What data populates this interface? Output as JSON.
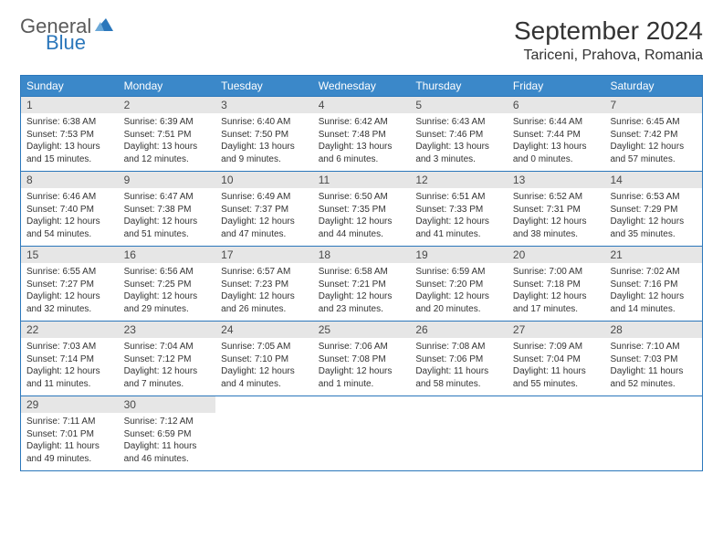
{
  "brand": {
    "general": "General",
    "blue": "Blue",
    "icon_color": "#2b77bb"
  },
  "title": "September 2024",
  "location": "Tariceni, Prahova, Romania",
  "colors": {
    "header_bg": "#3b88c9",
    "border": "#2b77bb",
    "daynum_bg": "#e6e6e6",
    "text": "#333333",
    "dow_text": "#ffffff"
  },
  "dow": [
    "Sunday",
    "Monday",
    "Tuesday",
    "Wednesday",
    "Thursday",
    "Friday",
    "Saturday"
  ],
  "weeks": [
    [
      {
        "n": "1",
        "sr": "Sunrise: 6:38 AM",
        "ss": "Sunset: 7:53 PM",
        "d1": "Daylight: 13 hours",
        "d2": "and 15 minutes."
      },
      {
        "n": "2",
        "sr": "Sunrise: 6:39 AM",
        "ss": "Sunset: 7:51 PM",
        "d1": "Daylight: 13 hours",
        "d2": "and 12 minutes."
      },
      {
        "n": "3",
        "sr": "Sunrise: 6:40 AM",
        "ss": "Sunset: 7:50 PM",
        "d1": "Daylight: 13 hours",
        "d2": "and 9 minutes."
      },
      {
        "n": "4",
        "sr": "Sunrise: 6:42 AM",
        "ss": "Sunset: 7:48 PM",
        "d1": "Daylight: 13 hours",
        "d2": "and 6 minutes."
      },
      {
        "n": "5",
        "sr": "Sunrise: 6:43 AM",
        "ss": "Sunset: 7:46 PM",
        "d1": "Daylight: 13 hours",
        "d2": "and 3 minutes."
      },
      {
        "n": "6",
        "sr": "Sunrise: 6:44 AM",
        "ss": "Sunset: 7:44 PM",
        "d1": "Daylight: 13 hours",
        "d2": "and 0 minutes."
      },
      {
        "n": "7",
        "sr": "Sunrise: 6:45 AM",
        "ss": "Sunset: 7:42 PM",
        "d1": "Daylight: 12 hours",
        "d2": "and 57 minutes."
      }
    ],
    [
      {
        "n": "8",
        "sr": "Sunrise: 6:46 AM",
        "ss": "Sunset: 7:40 PM",
        "d1": "Daylight: 12 hours",
        "d2": "and 54 minutes."
      },
      {
        "n": "9",
        "sr": "Sunrise: 6:47 AM",
        "ss": "Sunset: 7:38 PM",
        "d1": "Daylight: 12 hours",
        "d2": "and 51 minutes."
      },
      {
        "n": "10",
        "sr": "Sunrise: 6:49 AM",
        "ss": "Sunset: 7:37 PM",
        "d1": "Daylight: 12 hours",
        "d2": "and 47 minutes."
      },
      {
        "n": "11",
        "sr": "Sunrise: 6:50 AM",
        "ss": "Sunset: 7:35 PM",
        "d1": "Daylight: 12 hours",
        "d2": "and 44 minutes."
      },
      {
        "n": "12",
        "sr": "Sunrise: 6:51 AM",
        "ss": "Sunset: 7:33 PM",
        "d1": "Daylight: 12 hours",
        "d2": "and 41 minutes."
      },
      {
        "n": "13",
        "sr": "Sunrise: 6:52 AM",
        "ss": "Sunset: 7:31 PM",
        "d1": "Daylight: 12 hours",
        "d2": "and 38 minutes."
      },
      {
        "n": "14",
        "sr": "Sunrise: 6:53 AM",
        "ss": "Sunset: 7:29 PM",
        "d1": "Daylight: 12 hours",
        "d2": "and 35 minutes."
      }
    ],
    [
      {
        "n": "15",
        "sr": "Sunrise: 6:55 AM",
        "ss": "Sunset: 7:27 PM",
        "d1": "Daylight: 12 hours",
        "d2": "and 32 minutes."
      },
      {
        "n": "16",
        "sr": "Sunrise: 6:56 AM",
        "ss": "Sunset: 7:25 PM",
        "d1": "Daylight: 12 hours",
        "d2": "and 29 minutes."
      },
      {
        "n": "17",
        "sr": "Sunrise: 6:57 AM",
        "ss": "Sunset: 7:23 PM",
        "d1": "Daylight: 12 hours",
        "d2": "and 26 minutes."
      },
      {
        "n": "18",
        "sr": "Sunrise: 6:58 AM",
        "ss": "Sunset: 7:21 PM",
        "d1": "Daylight: 12 hours",
        "d2": "and 23 minutes."
      },
      {
        "n": "19",
        "sr": "Sunrise: 6:59 AM",
        "ss": "Sunset: 7:20 PM",
        "d1": "Daylight: 12 hours",
        "d2": "and 20 minutes."
      },
      {
        "n": "20",
        "sr": "Sunrise: 7:00 AM",
        "ss": "Sunset: 7:18 PM",
        "d1": "Daylight: 12 hours",
        "d2": "and 17 minutes."
      },
      {
        "n": "21",
        "sr": "Sunrise: 7:02 AM",
        "ss": "Sunset: 7:16 PM",
        "d1": "Daylight: 12 hours",
        "d2": "and 14 minutes."
      }
    ],
    [
      {
        "n": "22",
        "sr": "Sunrise: 7:03 AM",
        "ss": "Sunset: 7:14 PM",
        "d1": "Daylight: 12 hours",
        "d2": "and 11 minutes."
      },
      {
        "n": "23",
        "sr": "Sunrise: 7:04 AM",
        "ss": "Sunset: 7:12 PM",
        "d1": "Daylight: 12 hours",
        "d2": "and 7 minutes."
      },
      {
        "n": "24",
        "sr": "Sunrise: 7:05 AM",
        "ss": "Sunset: 7:10 PM",
        "d1": "Daylight: 12 hours",
        "d2": "and 4 minutes."
      },
      {
        "n": "25",
        "sr": "Sunrise: 7:06 AM",
        "ss": "Sunset: 7:08 PM",
        "d1": "Daylight: 12 hours",
        "d2": "and 1 minute."
      },
      {
        "n": "26",
        "sr": "Sunrise: 7:08 AM",
        "ss": "Sunset: 7:06 PM",
        "d1": "Daylight: 11 hours",
        "d2": "and 58 minutes."
      },
      {
        "n": "27",
        "sr": "Sunrise: 7:09 AM",
        "ss": "Sunset: 7:04 PM",
        "d1": "Daylight: 11 hours",
        "d2": "and 55 minutes."
      },
      {
        "n": "28",
        "sr": "Sunrise: 7:10 AM",
        "ss": "Sunset: 7:03 PM",
        "d1": "Daylight: 11 hours",
        "d2": "and 52 minutes."
      }
    ],
    [
      {
        "n": "29",
        "sr": "Sunrise: 7:11 AM",
        "ss": "Sunset: 7:01 PM",
        "d1": "Daylight: 11 hours",
        "d2": "and 49 minutes."
      },
      {
        "n": "30",
        "sr": "Sunrise: 7:12 AM",
        "ss": "Sunset: 6:59 PM",
        "d1": "Daylight: 11 hours",
        "d2": "and 46 minutes."
      },
      {
        "empty": true
      },
      {
        "empty": true
      },
      {
        "empty": true
      },
      {
        "empty": true
      },
      {
        "empty": true
      }
    ]
  ]
}
